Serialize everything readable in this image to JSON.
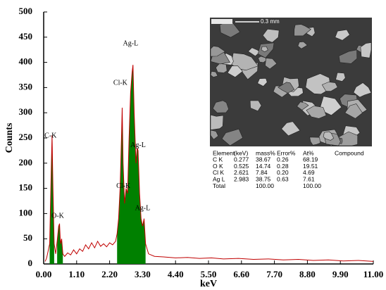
{
  "chart_data": {
    "type": "line",
    "xlabel": "keV",
    "ylabel": "Counts",
    "xlim": [
      0,
      11
    ],
    "ylim": [
      0,
      500
    ],
    "xticks": [
      {
        "value": 0,
        "label": "0.00"
      },
      {
        "value": 1.1,
        "label": "1.10"
      },
      {
        "value": 2.2,
        "label": "2.20"
      },
      {
        "value": 3.3,
        "label": "3.30"
      },
      {
        "value": 4.4,
        "label": "4.40"
      },
      {
        "value": 5.5,
        "label": "5.50"
      },
      {
        "value": 6.6,
        "label": "6.60"
      },
      {
        "value": 7.7,
        "label": "7.70"
      },
      {
        "value": 8.8,
        "label": "8.80"
      },
      {
        "value": 9.9,
        "label": "9.90"
      },
      {
        "value": 11,
        "label": "11.00"
      }
    ],
    "yticks": [
      0,
      50,
      100,
      150,
      200,
      250,
      300,
      350,
      400,
      450,
      500
    ],
    "series": [
      {
        "color": "#c00000",
        "x": [
          0.05,
          0.1,
          0.2,
          0.25,
          0.28,
          0.31,
          0.35,
          0.4,
          0.45,
          0.5,
          0.53,
          0.56,
          0.6,
          0.64,
          0.7,
          0.8,
          0.9,
          1.0,
          1.1,
          1.2,
          1.3,
          1.4,
          1.5,
          1.6,
          1.7,
          1.8,
          1.9,
          2.0,
          2.1,
          2.2,
          2.3,
          2.4,
          2.45,
          2.5,
          2.55,
          2.6,
          2.62,
          2.65,
          2.7,
          2.75,
          2.8,
          2.85,
          2.9,
          2.95,
          2.98,
          3.02,
          3.08,
          3.12,
          3.15,
          3.2,
          3.25,
          3.3,
          3.35,
          3.4,
          3.5,
          3.7,
          4.0,
          4.4,
          4.8,
          5.2,
          5.6,
          6.0,
          6.5,
          7.0,
          7.5,
          8.0,
          8.5,
          9.0,
          9.5,
          10.0,
          10.5,
          11.0
        ],
        "values": [
          5,
          12,
          40,
          180,
          255,
          150,
          40,
          20,
          45,
          75,
          80,
          40,
          50,
          20,
          15,
          22,
          18,
          28,
          20,
          30,
          25,
          38,
          30,
          42,
          32,
          45,
          35,
          40,
          34,
          42,
          38,
          45,
          60,
          90,
          150,
          260,
          310,
          200,
          120,
          150,
          140,
          250,
          340,
          380,
          395,
          300,
          200,
          230,
          225,
          140,
          90,
          75,
          90,
          40,
          20,
          15,
          14,
          12,
          13,
          11,
          12,
          10,
          11,
          9,
          10,
          8,
          9,
          7,
          8,
          6,
          7,
          5
        ]
      },
      {
        "color": "#008000",
        "fill": true,
        "x": [
          0.2,
          0.25,
          0.28,
          0.31,
          0.35
        ],
        "values": [
          40,
          180,
          255,
          150,
          40
        ]
      },
      {
        "color": "#008000",
        "fill": true,
        "x": [
          0.45,
          0.5,
          0.53,
          0.56,
          0.6,
          0.64
        ],
        "values": [
          45,
          75,
          80,
          40,
          50,
          20
        ]
      },
      {
        "color": "#008000",
        "fill": true,
        "x": [
          2.45,
          2.5,
          2.55,
          2.6,
          2.62,
          2.65,
          2.7,
          2.75,
          2.8,
          2.85,
          2.9,
          2.95,
          2.98,
          3.02,
          3.08,
          3.12,
          3.15,
          3.2,
          3.25,
          3.3,
          3.35,
          3.4
        ],
        "values": [
          60,
          90,
          150,
          260,
          310,
          200,
          120,
          150,
          140,
          250,
          340,
          380,
          395,
          300,
          200,
          230,
          225,
          140,
          90,
          75,
          90,
          40
        ]
      }
    ],
    "annotations": [
      {
        "text": "C-K",
        "x": 0.23,
        "y": 254
      },
      {
        "text": "O-K",
        "x": 0.47,
        "y": 95
      },
      {
        "text": "Cl-K",
        "x": 2.56,
        "y": 359
      },
      {
        "text": "Ag-L",
        "x": 2.9,
        "y": 437
      },
      {
        "text": "Cl-K",
        "x": 2.66,
        "y": 154
      },
      {
        "text": "Ag-L",
        "x": 3.15,
        "y": 235
      },
      {
        "text": "Ag-L",
        "x": 3.3,
        "y": 110
      }
    ]
  },
  "inset": {
    "scale_label": "0.3 mm",
    "table": {
      "header": [
        "Element",
        "(keV)",
        "mass%",
        "Error%",
        "At%",
        "Compound"
      ],
      "rows": [
        [
          "C K",
          "0.277",
          "38.67",
          "0.26",
          "68.19"
        ],
        [
          "O K",
          "0.525",
          "14.74",
          "0.28",
          "19.51"
        ],
        [
          "Cl K",
          "2.621",
          "7.84",
          "0.20",
          "4.69"
        ],
        [
          "Ag L",
          "2.983",
          "38.75",
          "0.63",
          "7.61"
        ],
        [
          "Total",
          "",
          "100.00",
          "",
          "100.00"
        ]
      ]
    }
  }
}
